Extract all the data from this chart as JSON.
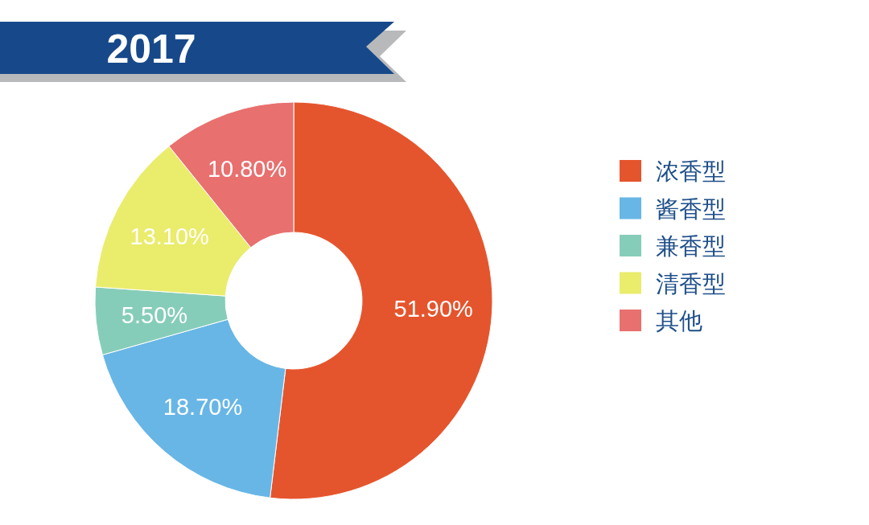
{
  "chart_data": {
    "type": "donut",
    "title": "2017",
    "categories": [
      "浓香型",
      "酱香型",
      "兼香型",
      "清香型",
      "其他"
    ],
    "values": [
      51.9,
      18.7,
      5.5,
      13.1,
      10.8
    ],
    "colors": [
      "#e5552d",
      "#68b6e6",
      "#86cdb9",
      "#eaec6c",
      "#e8706f"
    ],
    "value_labels": [
      "51.90%",
      "18.70%",
      "5.50%",
      "13.10%",
      "10.80%"
    ],
    "legend": "right"
  }
}
